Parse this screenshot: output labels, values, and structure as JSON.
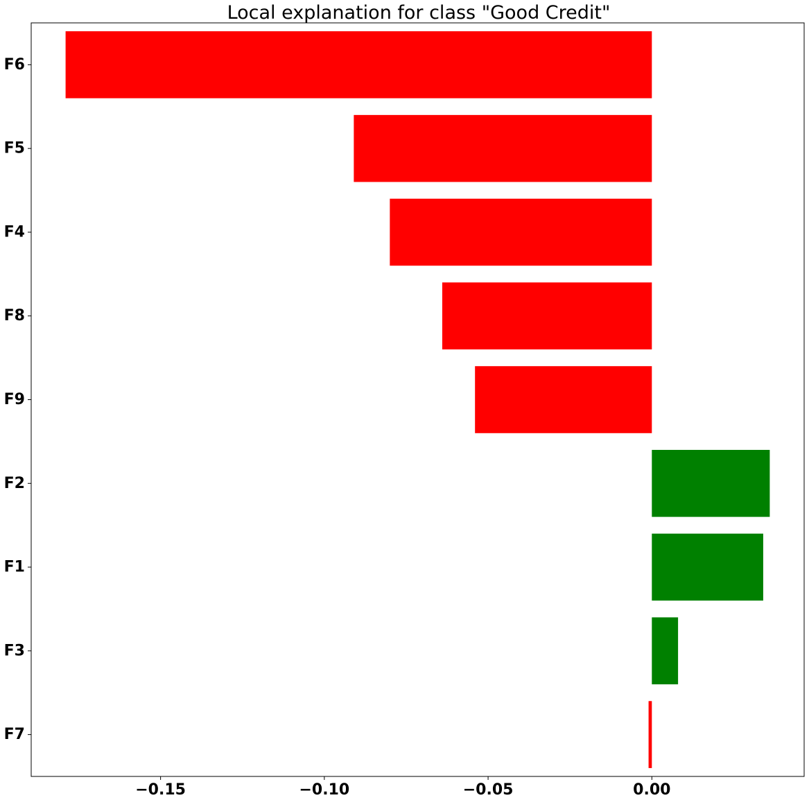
{
  "chart_data": {
    "type": "bar",
    "orientation": "horizontal",
    "title": "Local explanation for class \"Good Credit\"",
    "xlabel": "",
    "ylabel": "",
    "categories": [
      "F6",
      "F5",
      "F4",
      "F8",
      "F9",
      "F2",
      "F1",
      "F3",
      "F7"
    ],
    "values": [
      -0.179,
      -0.091,
      -0.08,
      -0.064,
      -0.054,
      0.036,
      0.034,
      0.008,
      -0.001
    ],
    "xlim": [
      -0.1895,
      0.0465
    ],
    "xticks": [
      -0.15,
      -0.1,
      -0.05,
      0.0
    ],
    "xtick_labels": [
      "−0.15",
      "−0.10",
      "−0.05",
      "0.00"
    ],
    "grid": false,
    "colors": {
      "positive": "#008000",
      "negative": "#ff0000"
    }
  }
}
